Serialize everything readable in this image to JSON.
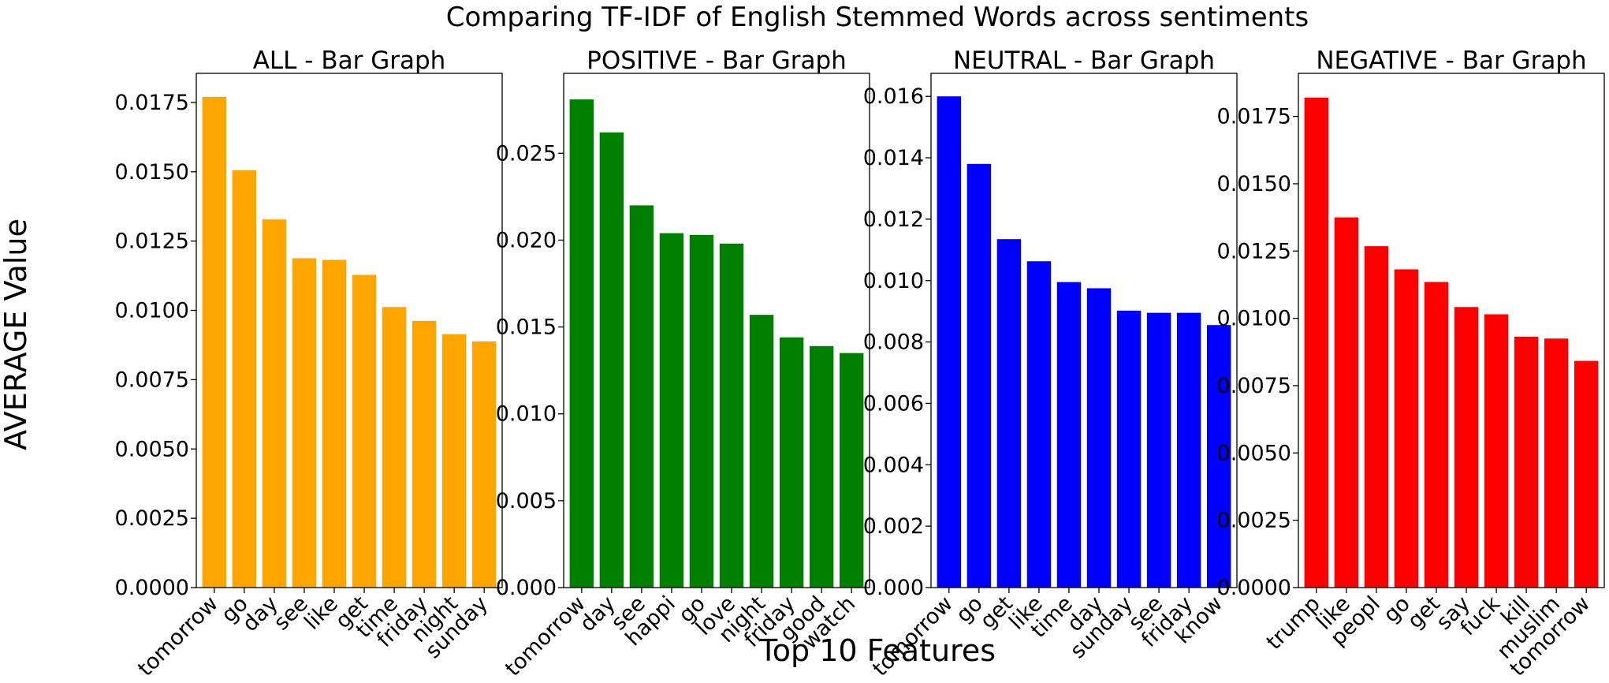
{
  "figure": {
    "title": "Comparing TF-IDF of English Stemmed Words across sentiments",
    "xlabel": "Top 10 Features",
    "ylabel": "AVERAGE Value"
  },
  "chart_data": [
    {
      "type": "bar",
      "title": "ALL - Bar Graph",
      "color": "#FFA500",
      "categories": [
        "tomorrow",
        "go",
        "day",
        "see",
        "like",
        "get",
        "time",
        "friday",
        "night",
        "sunday"
      ],
      "values": [
        0.0177,
        0.01505,
        0.01328,
        0.01188,
        0.01182,
        0.01128,
        0.01012,
        0.00962,
        0.00914,
        0.00888
      ],
      "ylim": [
        0,
        0.01855
      ],
      "yticks": [
        "0.0000",
        "0.0025",
        "0.0050",
        "0.0075",
        "0.0100",
        "0.0125",
        "0.0150",
        "0.0175"
      ],
      "ytick_values": [
        0,
        0.0025,
        0.005,
        0.0075,
        0.01,
        0.0125,
        0.015,
        0.0175
      ]
    },
    {
      "type": "bar",
      "title": "POSITIVE - Bar Graph",
      "color": "#008000",
      "categories": [
        "tomorrow",
        "day",
        "see",
        "happi",
        "go",
        "love",
        "night",
        "friday",
        "good",
        "watch"
      ],
      "values": [
        0.0281,
        0.0262,
        0.022,
        0.0204,
        0.0203,
        0.0198,
        0.0157,
        0.0144,
        0.0139,
        0.0135
      ],
      "ylim": [
        0,
        0.0296
      ],
      "yticks": [
        "0.000",
        "0.005",
        "0.010",
        "0.015",
        "0.020",
        "0.025"
      ],
      "ytick_values": [
        0,
        0.005,
        0.01,
        0.015,
        0.02,
        0.025
      ]
    },
    {
      "type": "bar",
      "title": "NEUTRAL - Bar Graph",
      "color": "#0000FF",
      "categories": [
        "tomorrow",
        "go",
        "get",
        "like",
        "time",
        "day",
        "sunday",
        "see",
        "friday",
        "know"
      ],
      "values": [
        0.016,
        0.0138,
        0.01135,
        0.01063,
        0.00995,
        0.00975,
        0.00902,
        0.00895,
        0.00895,
        0.00855
      ],
      "ylim": [
        0,
        0.01675
      ],
      "yticks": [
        "0.000",
        "0.002",
        "0.004",
        "0.006",
        "0.008",
        "0.010",
        "0.012",
        "0.014",
        "0.016"
      ],
      "ytick_values": [
        0,
        0.002,
        0.004,
        0.006,
        0.008,
        0.01,
        0.012,
        0.014,
        0.016
      ]
    },
    {
      "type": "bar",
      "title": "NEGATIVE - Bar Graph",
      "color": "#FF0000",
      "categories": [
        "trump",
        "like",
        "peopl",
        "go",
        "get",
        "say",
        "fuck",
        "kill",
        "muslim",
        "tomorrow"
      ],
      "values": [
        0.0182,
        0.01375,
        0.01268,
        0.01182,
        0.01135,
        0.01042,
        0.01015,
        0.00932,
        0.00925,
        0.00842
      ],
      "ylim": [
        0,
        0.0191
      ],
      "yticks": [
        "0.0000",
        "0.0025",
        "0.0050",
        "0.0075",
        "0.0100",
        "0.0125",
        "0.0150",
        "0.0175"
      ],
      "ytick_values": [
        0,
        0.0025,
        0.005,
        0.0075,
        0.01,
        0.0125,
        0.015,
        0.0175
      ]
    }
  ]
}
